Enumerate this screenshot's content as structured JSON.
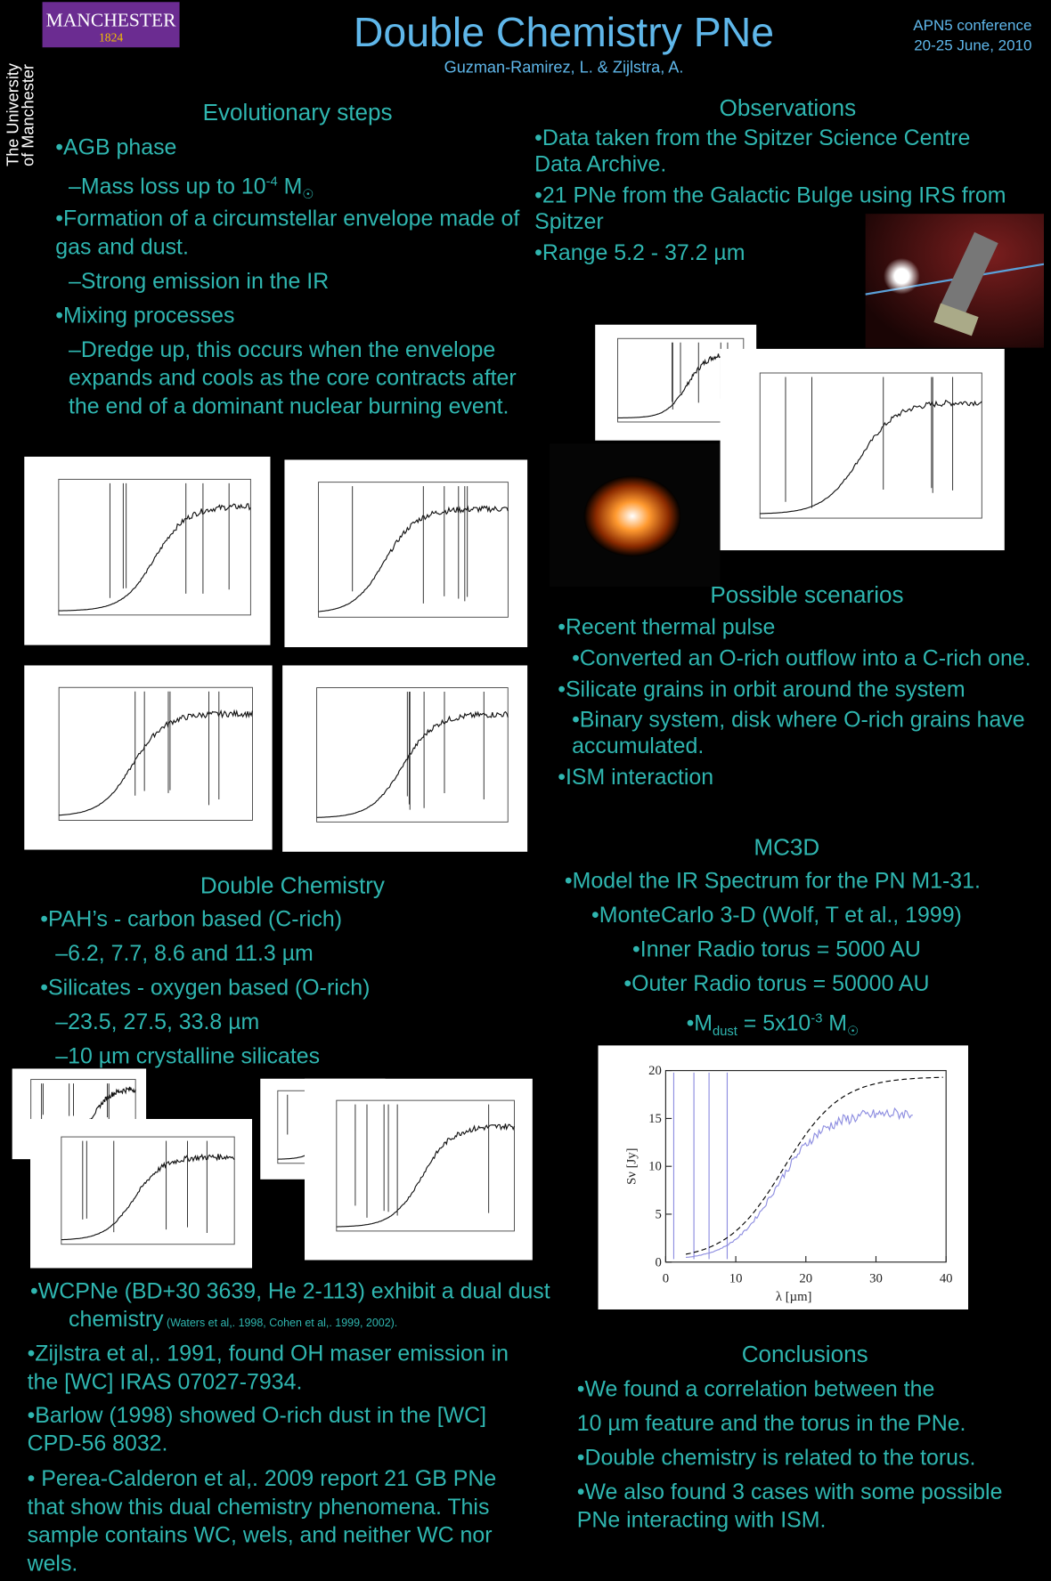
{
  "header": {
    "logo_name": "MANCHESTER",
    "logo_year": "1824",
    "university_lines": [
      "The University",
      "of Manchester"
    ],
    "title": "Double Chemistry PNe",
    "authors": "Guzman-Ramirez, L. & Zijlstra, A.",
    "conference": "APN5 conference",
    "dates": "20-25 June, 2010"
  },
  "evolutionary": {
    "heading": "Evolutionary steps",
    "agb": "•AGB phase",
    "mass_loss": {
      "text": "–Mass loss up to 10",
      "sup": "-4",
      "unit": " M",
      "sub": "☉"
    },
    "formation": "•Formation of a circumstellar envelope made of gas and dust.",
    "emission": "–Strong emission in the IR",
    "mixing": "•Mixing processes",
    "dredge": "–Dredge up, this occurs when the envelope expands and cools as the core contracts after the end of a dominant nuclear burning event."
  },
  "observations": {
    "heading": "Observations",
    "items": [
      "•Data taken from the Spitzer Science Centre Data Archive.",
      "•21 PNe from the Galactic Bulge using IRS from Spitzer",
      "•Range 5.2 - 37.2 µm"
    ]
  },
  "scenarios": {
    "heading": "Possible scenarios",
    "pulse": "•Recent thermal pulse",
    "converted": "•Converted an O-rich outflow into a C-rich one.",
    "silicate": "•Silicate grains in orbit around the system",
    "binary": "•Binary system, disk where O-rich grains have accumulated.",
    "ism": "•ISM interaction"
  },
  "mc3d": {
    "heading": "MC3D",
    "items": [
      "•Model the IR Spectrum for the PN M1-31.",
      "•MonteCarlo 3-D (Wolf, T et al., 1999)",
      "•Inner Radio torus = 5000 AU",
      "•Outer Radio torus = 50000 AU"
    ],
    "mdust": {
      "text": "•M",
      "sub": "dust",
      "mid": " = 5x10",
      "sup": "-3",
      "unit": " M",
      "sub2": "☉"
    }
  },
  "mc3d_plot": {
    "xlabel": "λ  [µm]",
    "ylabel": "Sν [Jy]",
    "xlim": [
      0,
      40
    ],
    "ylim": [
      0,
      20
    ],
    "xticks": [
      0,
      10,
      20,
      30,
      40
    ],
    "yticks": [
      0,
      5,
      10,
      15,
      20
    ]
  },
  "double_chemistry": {
    "heading": "Double Chemistry",
    "pah": "•PAH’s - carbon based (C-rich)",
    "pah_bands": "–6.2, 7.7, 8.6 and 11.3 µm",
    "silicates": "•Silicates - oxygen based (O-rich)",
    "sil_bands": "–23.5, 27.5, 33.8 µm",
    "crystalline": "–10 µm crystalline silicates"
  },
  "wc": {
    "wcpne": {
      "text": "•WCPNe (BD+30 3639, He 2-113) exhibit a dual dust chemistry",
      "ref": " (Waters et al,. 1998, Cohen et al,. 1999, 2002)."
    },
    "items": [
      "•Zijlstra et al,. 1991, found OH maser emission in the [WC] IRAS 07027-7934.",
      "•Barlow (1998) showed O-rich dust in the [WC] CPD-56 8032.",
      "• Perea-Calderon et al,. 2009 report 21 GB PNe that show this dual chemistry phenomena. This sample contains WC, wels, and neither WC nor wels."
    ]
  },
  "conclusions": {
    "heading": "Conclusions",
    "correlation": [
      "•We found a correlation between the",
      "10 µm feature and the torus in the PNe."
    ],
    "items": [
      "•Double chemistry is related to the torus.",
      "•We also found 3 cases with some possible PNe interacting with ISM."
    ]
  }
}
